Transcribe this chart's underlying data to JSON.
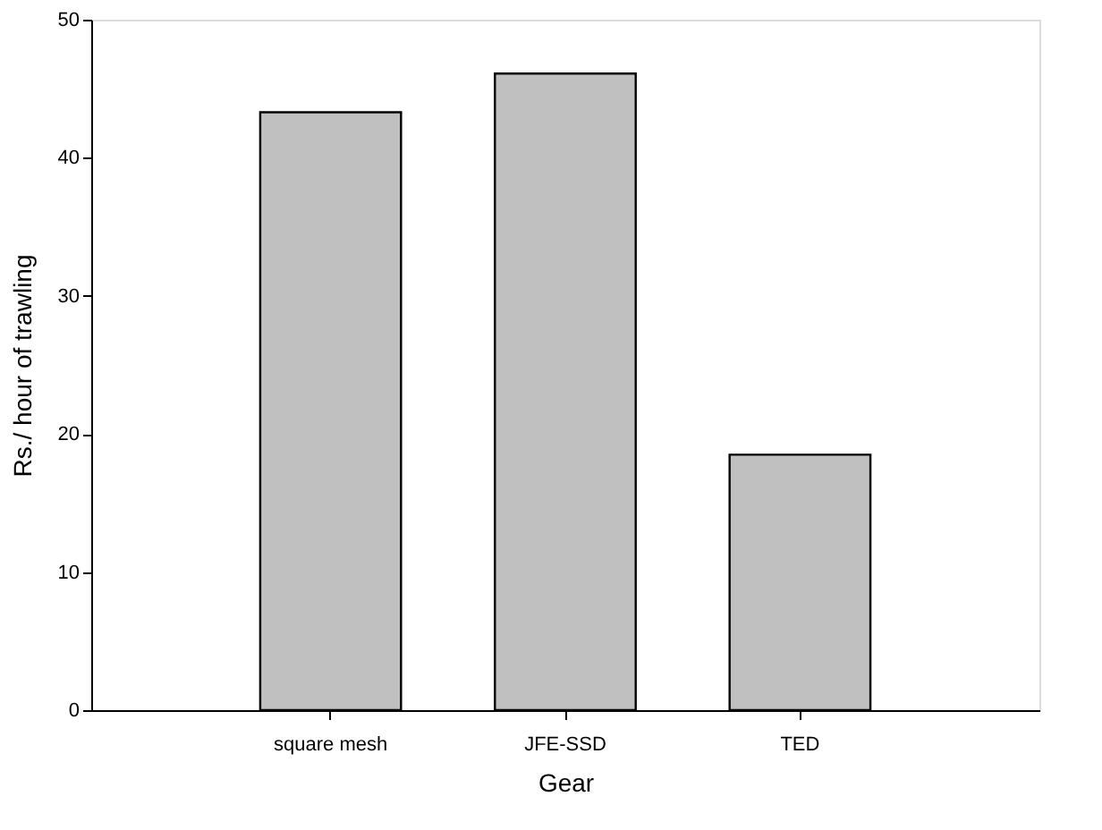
{
  "chart_data": {
    "type": "bar",
    "xlabel": "Gear",
    "ylabel": "Rs./ hour of trawling",
    "categories": [
      "square mesh",
      "JFE-SSD",
      "TED"
    ],
    "values": [
      43.3,
      46.1,
      18.5
    ],
    "color": "#c0c0c0",
    "ylim": [
      0,
      50
    ],
    "yticks": [
      0,
      10,
      20,
      30,
      40,
      50
    ],
    "grid": false
  }
}
